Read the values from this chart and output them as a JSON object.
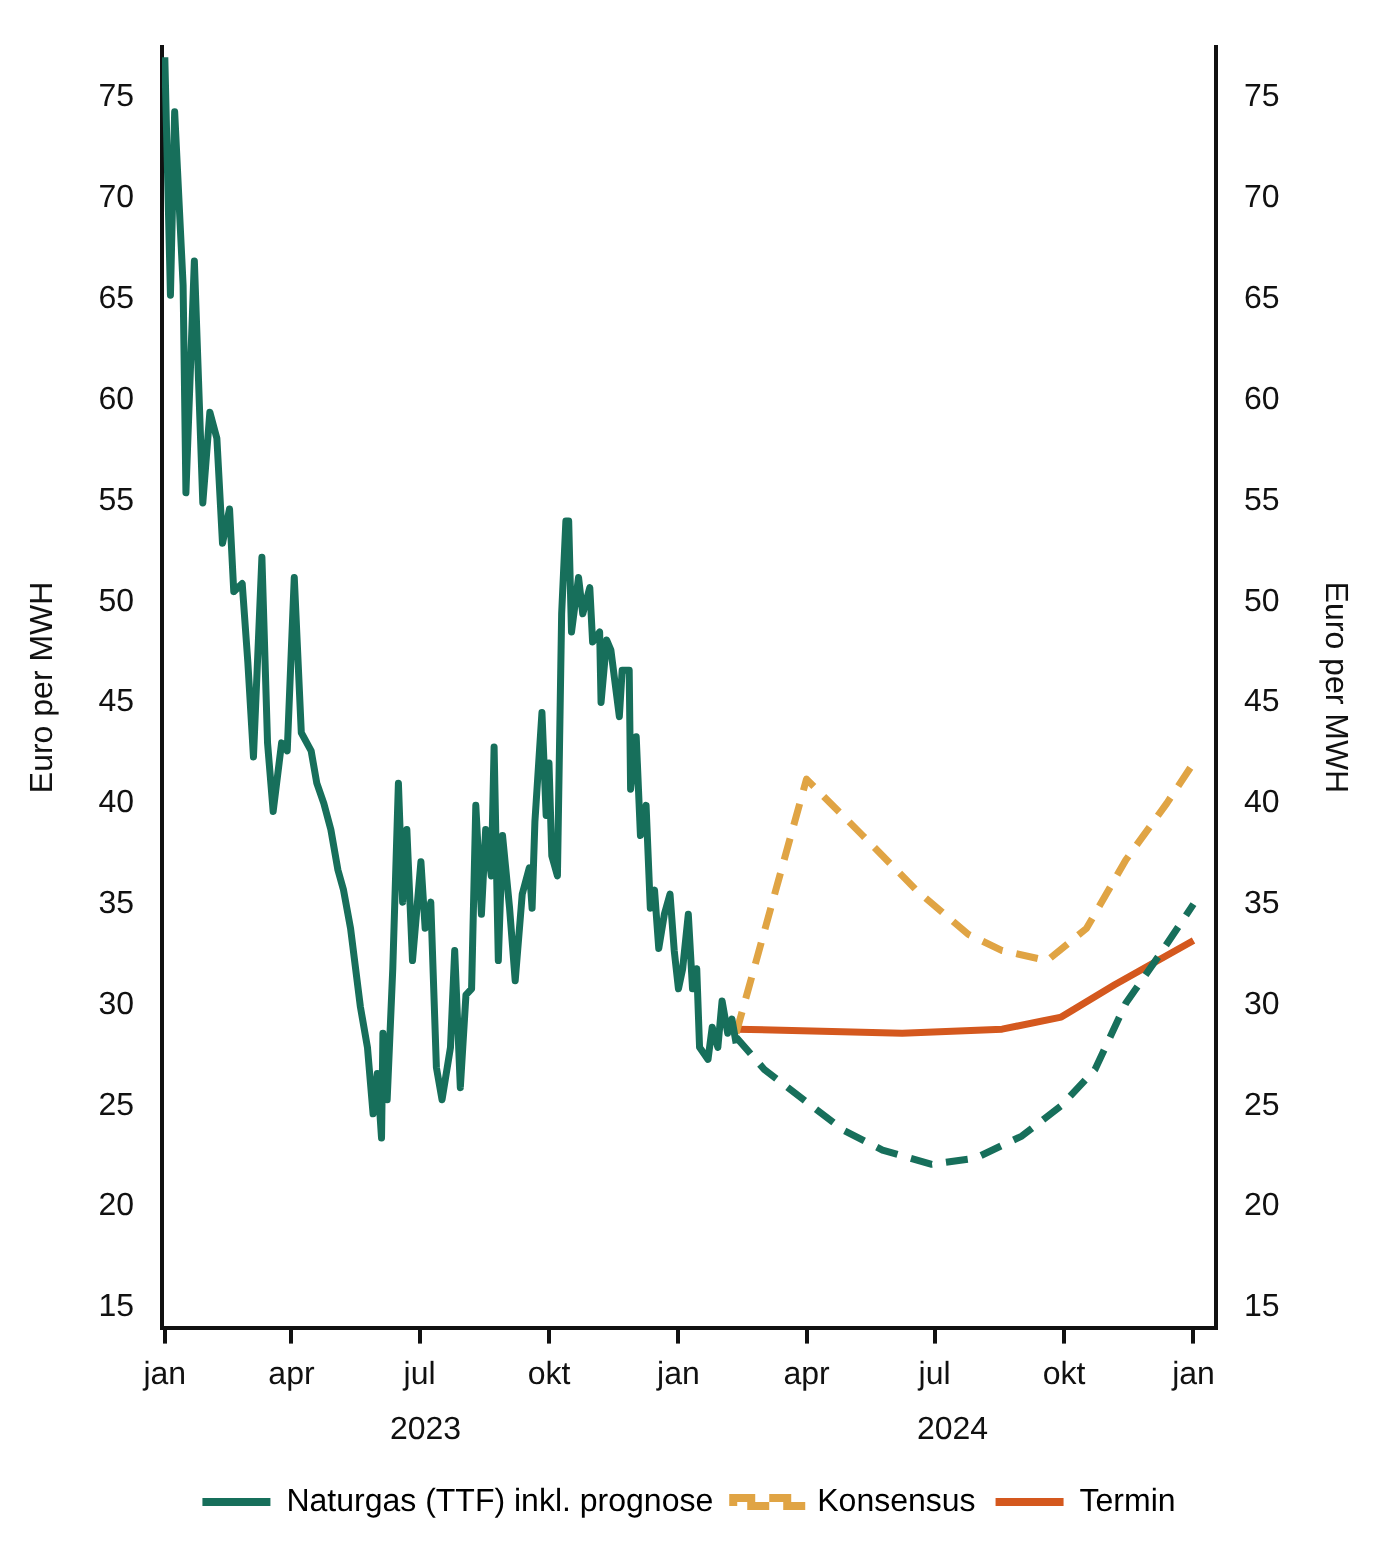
{
  "chart_data": {
    "type": "line",
    "ylabel": "Euro per MWH",
    "y2label": "Euro per MWH",
    "xlim": [
      "2022-12-30",
      "2025-01-17"
    ],
    "xticks": [
      {
        "value": "2023-01-01",
        "label": "jan"
      },
      {
        "value": "2023-04-01",
        "label": "apr"
      },
      {
        "value": "2023-07-01",
        "label": "jul"
      },
      {
        "value": "2023-10-01",
        "label": "okt"
      },
      {
        "value": "2024-01-01",
        "label": "jan"
      },
      {
        "value": "2024-04-01",
        "label": "apr"
      },
      {
        "value": "2024-07-01",
        "label": "jul"
      },
      {
        "value": "2024-10-01",
        "label": "okt"
      },
      {
        "value": "2025-01-01",
        "label": "jan"
      }
    ],
    "ylim": [
      14,
      77.5
    ],
    "yticks": [
      15,
      20,
      25,
      30,
      35,
      40,
      45,
      50,
      55,
      60,
      65,
      70,
      75
    ],
    "y2lim": [
      14,
      77.5
    ],
    "y2ticks": [
      15,
      20,
      25,
      30,
      35,
      40,
      45,
      50,
      55,
      60,
      65,
      70,
      75
    ],
    "legend": "bottom",
    "marker": "none",
    "annotations": [
      "2023",
      "2024"
    ],
    "series": [
      {
        "name": "Naturgas (TTF) inkl. prognose",
        "color": "#176f5b",
        "line_style": "solid",
        "x": [
          "2023-01-01",
          "2023-01-05",
          "2023-01-08",
          "2023-01-14",
          "2023-01-16",
          "2023-01-22",
          "2023-01-28",
          "2023-02-02",
          "2023-02-07",
          "2023-02-11",
          "2023-02-16",
          "2023-02-19",
          "2023-02-25",
          "2023-03-01",
          "2023-03-05",
          "2023-03-11",
          "2023-03-15",
          "2023-03-19",
          "2023-03-25",
          "2023-03-29",
          "2023-04-03",
          "2023-04-08",
          "2023-04-15",
          "2023-04-19",
          "2023-04-24",
          "2023-04-29",
          "2023-05-04",
          "2023-05-08",
          "2023-05-13",
          "2023-05-20",
          "2023-05-25",
          "2023-05-29",
          "2023-06-01",
          "2023-06-04",
          "2023-06-05",
          "2023-06-08",
          "2023-06-12",
          "2023-06-16",
          "2023-06-19",
          "2023-06-22",
          "2023-06-26",
          "2023-07-02",
          "2023-07-05",
          "2023-07-09",
          "2023-07-13",
          "2023-07-17",
          "2023-07-23",
          "2023-07-26",
          "2023-07-30",
          "2023-08-03",
          "2023-08-07",
          "2023-08-10",
          "2023-08-14",
          "2023-08-17",
          "2023-08-21",
          "2023-08-23",
          "2023-08-26",
          "2023-08-29",
          "2023-09-03",
          "2023-09-07",
          "2023-09-12",
          "2023-09-17",
          "2023-09-19",
          "2023-09-21",
          "2023-09-26",
          "2023-09-29",
          "2023-10-01",
          "2023-10-03",
          "2023-10-07",
          "2023-10-10",
          "2023-10-13",
          "2023-10-15",
          "2023-10-17",
          "2023-10-22",
          "2023-10-25",
          "2023-10-30",
          "2023-11-01",
          "2023-11-06",
          "2023-11-07",
          "2023-11-11",
          "2023-11-14",
          "2023-11-20",
          "2023-11-22",
          "2023-11-27",
          "2023-11-28",
          "2023-12-02",
          "2023-12-05",
          "2023-12-09",
          "2023-12-12",
          "2023-12-15",
          "2023-12-18",
          "2023-12-22",
          "2023-12-26",
          "2023-12-29",
          "2024-01-01",
          "2024-01-04",
          "2024-01-08",
          "2024-01-11",
          "2024-01-14",
          "2024-01-16",
          "2024-01-22",
          "2024-01-25",
          "2024-01-29",
          "2024-02-01",
          "2024-02-05",
          "2024-02-08",
          "2024-02-11"
        ],
        "values": [
          77,
          65.2,
          74.3,
          65.7,
          55.4,
          66.9,
          54.9,
          59.4,
          58.1,
          52.9,
          54.6,
          50.5,
          50.9,
          47,
          42.3,
          52.2,
          43,
          39.6,
          43,
          42.6,
          51.2,
          43.5,
          42.6,
          41,
          40,
          38.7,
          36.7,
          35.7,
          33.8,
          29.9,
          27.9,
          24.6,
          26.6,
          23.4,
          28.6,
          25.3,
          31.8,
          41,
          35.1,
          38.7,
          32.2,
          37.1,
          33.8,
          35.1,
          26.9,
          25.3,
          27.9,
          32.7,
          25.9,
          30.5,
          30.8,
          39.9,
          34.5,
          38.7,
          36.4,
          42.8,
          32.2,
          38.4,
          34.8,
          31.2,
          35.5,
          36.8,
          34.8,
          39.1,
          44.5,
          39.4,
          42,
          37.4,
          36.4,
          49.4,
          54,
          54,
          48.5,
          51.2,
          49.4,
          50.7,
          48,
          48.5,
          45,
          48.1,
          47.6,
          44.3,
          46.6,
          46.6,
          40.7,
          43.3,
          38.4,
          39.9,
          34.8,
          35.7,
          32.8,
          34.5,
          35.5,
          32.7,
          30.8,
          31.8,
          34.5,
          30.8,
          31.8,
          27.9,
          27.3,
          28.9,
          27.9,
          30.2,
          28.6,
          29.3,
          28.1
        ]
      },
      {
        "color": "#176f5b",
        "line_style": "dashed",
        "x": [
          "2024-02-11",
          "2024-03-02",
          "2024-03-30",
          "2024-04-27",
          "2024-05-25",
          "2024-06-29",
          "2024-07-30",
          "2024-09-01",
          "2024-09-29",
          "2024-10-23",
          "2024-11-14",
          "2024-12-08",
          "2025-01-01"
        ],
        "values": [
          28.4,
          26.8,
          25.3,
          23.8,
          22.8,
          22.1,
          22.4,
          23.5,
          25,
          26.8,
          30.1,
          32.5,
          35
        ]
      },
      {
        "name": "Konsensus",
        "color": "#e0a444",
        "line_style": "dashed",
        "x": [
          "2024-02-11",
          "2024-04-01",
          "2024-05-11",
          "2024-06-18",
          "2024-07-25",
          "2024-08-18",
          "2024-09-19",
          "2024-10-17",
          "2024-11-14",
          "2024-12-13",
          "2025-01-01"
        ],
        "values": [
          28.6,
          41.2,
          38.4,
          35.7,
          33.5,
          32.7,
          32.2,
          33.8,
          37.2,
          40,
          42
        ]
      },
      {
        "name": "Termin",
        "color": "#d4581e",
        "line_style": "solid",
        "x": [
          "2024-02-11",
          "2024-06-08",
          "2024-08-18",
          "2024-09-29",
          "2024-11-06",
          "2025-01-01"
        ],
        "values": [
          28.8,
          28.6,
          28.8,
          29.4,
          31,
          33.2
        ]
      }
    ]
  }
}
